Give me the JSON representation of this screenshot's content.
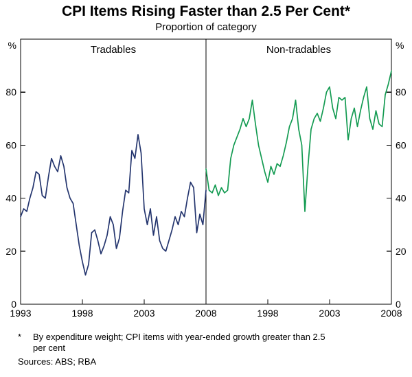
{
  "title": "CPI Items Rising Faster than 2.5 Per Cent*",
  "subtitle": "Proportion of category",
  "footnote_marker": "*",
  "footnote": "By expenditure weight; CPI items with year-ended growth greater than 2.5 per cent",
  "sources": "Sources: ABS; RBA",
  "chart_data": {
    "type": "line",
    "unit": "%",
    "ylim": [
      0,
      100
    ],
    "y_ticks": [
      0,
      20,
      40,
      60,
      80
    ],
    "x_range": [
      1993,
      2008
    ],
    "grid": false,
    "legend": "panel-labels",
    "panels": [
      {
        "label": "Tradables",
        "color": "#24356e",
        "x_tick_labels": [
          1993,
          1998,
          2003,
          2008
        ],
        "series": {
          "name": "Tradables",
          "x_start": 1993,
          "x_step": 0.25,
          "values": [
            33,
            36,
            35,
            40,
            44,
            50,
            49,
            41,
            40,
            48,
            55,
            52,
            50,
            56,
            52,
            44,
            40,
            38,
            30,
            22,
            16,
            11,
            15,
            27,
            28,
            24,
            19,
            22,
            26,
            33,
            30,
            21,
            25,
            35,
            43,
            42,
            58,
            55,
            64,
            57,
            36,
            30,
            36,
            26,
            33,
            24,
            21,
            20,
            24,
            28,
            33,
            30,
            35,
            33,
            40,
            46,
            44,
            27,
            34,
            30,
            43
          ]
        }
      },
      {
        "label": "Non-tradables",
        "color": "#149b52",
        "x_tick_labels": [
          1998,
          2003,
          2008
        ],
        "series": {
          "name": "Non-tradables",
          "x_start": 1993,
          "x_step": 0.25,
          "values": [
            51,
            43,
            42,
            45,
            41,
            44,
            42,
            43,
            55,
            60,
            63,
            66,
            70,
            67,
            70,
            77,
            68,
            60,
            55,
            50,
            46,
            52,
            49,
            53,
            52,
            56,
            61,
            67,
            70,
            77,
            66,
            60,
            35,
            52,
            66,
            70,
            72,
            69,
            74,
            80,
            82,
            74,
            70,
            78,
            77,
            78,
            62,
            70,
            74,
            67,
            73,
            78,
            82,
            70,
            66,
            73,
            68,
            67,
            79,
            83,
            88
          ]
        }
      }
    ]
  }
}
